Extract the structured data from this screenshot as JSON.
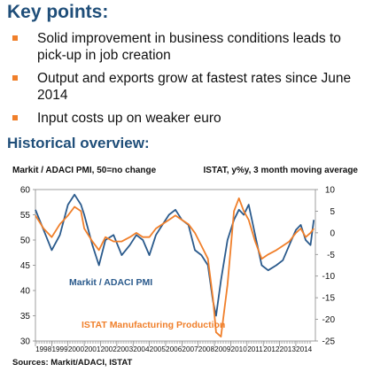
{
  "key_points": {
    "title": "Key points:",
    "items": [
      "Solid improvement in business conditions leads to pick-up in job creation",
      "Output and exports grow at fastest rates since June 2014",
      "Input costs up on weaker euro"
    ],
    "bullet_color": "#f07f2a"
  },
  "overview": {
    "title": "Historical overview:",
    "left_caption": "Markit / ADACI PMI, 50=no change",
    "right_caption": "ISTAT, y%y, 3 month moving average",
    "sources": "Sources: Markit/ADACI, ISTAT"
  },
  "chart_data": {
    "type": "line",
    "left_axis": {
      "min": 30,
      "max": 60,
      "ticks": [
        "60",
        "55",
        "50",
        "45",
        "40",
        "35",
        "30"
      ]
    },
    "right_axis": {
      "min": -25,
      "max": 10,
      "ticks": [
        "10",
        "5",
        "0",
        "-5",
        "-10",
        "-15",
        "-20",
        "-25"
      ]
    },
    "x_ticks": [
      "1998",
      "1999",
      "2000",
      "2001",
      "2002",
      "2003",
      "2004",
      "2005",
      "2006",
      "2007",
      "2008",
      "2009",
      "2010",
      "2011",
      "2012",
      "2013",
      "2014"
    ],
    "series": [
      {
        "name": "Markit / ADACI PMI",
        "axis": "left",
        "color": "#2a5a8c",
        "x": [
          1998.0,
          1998.5,
          1999.0,
          1999.5,
          2000.0,
          2000.4,
          2000.8,
          2001.0,
          2001.5,
          2001.9,
          2002.3,
          2002.8,
          2003.3,
          2003.8,
          2004.2,
          2004.6,
          2005.0,
          2005.4,
          2005.8,
          2006.2,
          2006.6,
          2007.0,
          2007.4,
          2007.8,
          2008.2,
          2008.6,
          2008.9,
          2009.1,
          2009.4,
          2009.8,
          2010.2,
          2010.5,
          2010.8,
          2011.1,
          2011.5,
          2011.9,
          2012.3,
          2012.8,
          2013.2,
          2013.6,
          2014.0,
          2014.3,
          2014.6,
          2014.9,
          2015.1
        ],
        "values": [
          56,
          52,
          48,
          51,
          57,
          59,
          57,
          55,
          49,
          45,
          50,
          51,
          47,
          49,
          51,
          50,
          47,
          51,
          53,
          55,
          56,
          54,
          53,
          48,
          47,
          45,
          38,
          35,
          42,
          50,
          54,
          56,
          55,
          57,
          51,
          45,
          44,
          45,
          46,
          49,
          52,
          53,
          50,
          49,
          54
        ]
      },
      {
        "name": "ISTAT Manufacturing Production",
        "axis": "right",
        "color": "#f07f2a",
        "x": [
          1998.0,
          1998.5,
          1999.0,
          1999.5,
          2000.0,
          2000.4,
          2000.8,
          2001.0,
          2001.5,
          2001.9,
          2002.3,
          2002.8,
          2003.3,
          2003.8,
          2004.2,
          2004.6,
          2005.0,
          2005.4,
          2005.8,
          2006.2,
          2006.6,
          2007.0,
          2007.4,
          2007.8,
          2008.2,
          2008.6,
          2008.9,
          2009.1,
          2009.4,
          2009.8,
          2010.2,
          2010.5,
          2010.8,
          2011.1,
          2011.5,
          2011.9,
          2012.3,
          2012.8,
          2013.2,
          2013.6,
          2014.0,
          2014.3,
          2014.6,
          2014.9,
          2015.1
        ],
        "values": [
          4,
          1,
          -1,
          2,
          4,
          6,
          5,
          1,
          -2,
          -4,
          -1,
          -2,
          -2,
          -1,
          0,
          -1,
          -1,
          1,
          2,
          3,
          4,
          3,
          2,
          0,
          -3,
          -6,
          -15,
          -23,
          -24,
          -12,
          5,
          8,
          5,
          3,
          -2,
          -6,
          -5,
          -4,
          -3,
          -2,
          0,
          1,
          -1,
          0,
          1
        ]
      }
    ],
    "annotations": [
      "Markit / ADACI PMI",
      "ISTAT Manufacturing Production"
    ]
  }
}
